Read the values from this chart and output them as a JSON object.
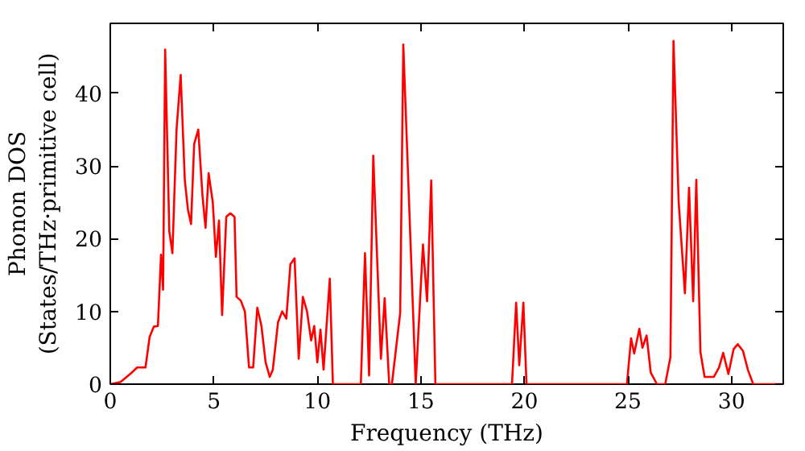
{
  "chart_data": {
    "type": "line",
    "xlabel": "Frequency (THz)",
    "ylabel": "Phonon DOS\n(States/THz·primitive cell)",
    "xlim": [
      0,
      32.5
    ],
    "ylim": [
      0,
      49.6
    ],
    "xticks": [
      0,
      5,
      10,
      15,
      20,
      25,
      30
    ],
    "yticks": [
      0,
      10,
      20,
      30,
      40
    ],
    "marker": "none",
    "line_style": "solid",
    "series": [
      {
        "color": "#ff0000",
        "x": [
          0,
          0.5,
          1,
          1.3,
          1.7,
          1.9,
          2.1,
          2.3,
          2.45,
          2.55,
          2.65,
          2.85,
          3.0,
          3.2,
          3.4,
          3.6,
          3.75,
          3.9,
          4.05,
          4.25,
          4.45,
          4.6,
          4.75,
          4.95,
          5.1,
          5.25,
          5.4,
          5.6,
          5.8,
          6.0,
          6.1,
          6.3,
          6.5,
          6.7,
          6.9,
          7.1,
          7.3,
          7.5,
          7.7,
          7.85,
          8.1,
          8.3,
          8.5,
          8.7,
          8.9,
          9.1,
          9.3,
          9.5,
          9.7,
          9.85,
          10.0,
          10.15,
          10.3,
          10.6,
          10.75,
          12.1,
          12.3,
          12.5,
          12.7,
          13.07,
          13.25,
          13.47,
          13.6,
          14.0,
          14.15,
          14.75,
          15.1,
          15.3,
          15.5,
          15.7,
          19.4,
          19.6,
          19.75,
          19.95,
          20.1,
          24.95,
          25.15,
          25.3,
          25.55,
          25.7,
          25.9,
          26.1,
          26.4,
          26.8,
          27.05,
          27.2,
          27.45,
          27.75,
          27.95,
          28.15,
          28.3,
          28.5,
          28.7,
          29.15,
          29.4,
          29.6,
          29.85,
          30.1,
          30.3,
          30.55,
          30.8,
          31.05,
          32.5
        ],
        "values": [
          0,
          0.3,
          1.5,
          2.3,
          2.3,
          6.5,
          7.9,
          8.0,
          17.8,
          13,
          46,
          21,
          18,
          35,
          42.5,
          28,
          24,
          22,
          33,
          35,
          26,
          21.5,
          29,
          25,
          17.5,
          22.5,
          9.5,
          23,
          23.5,
          23,
          12,
          11.5,
          10,
          2.3,
          2.3,
          10.5,
          8,
          3,
          1,
          2,
          8.5,
          10,
          9,
          16.5,
          17.3,
          3.5,
          12,
          10,
          6,
          8,
          3,
          7.5,
          2,
          14.5,
          0,
          0,
          18,
          1.2,
          31.4,
          3.5,
          11.8,
          0,
          0,
          9.8,
          46.7,
          0,
          19.2,
          11.4,
          28,
          0,
          0,
          11.2,
          2.6,
          11.2,
          0,
          0,
          6.3,
          4.2,
          7.6,
          5,
          6.7,
          1.6,
          0,
          0,
          3.7,
          47.2,
          25,
          12.5,
          27,
          11.4,
          28.1,
          4.4,
          1,
          1,
          2.3,
          4.3,
          1.4,
          4.8,
          5.5,
          4.6,
          1.9,
          0,
          0
        ]
      }
    ]
  }
}
